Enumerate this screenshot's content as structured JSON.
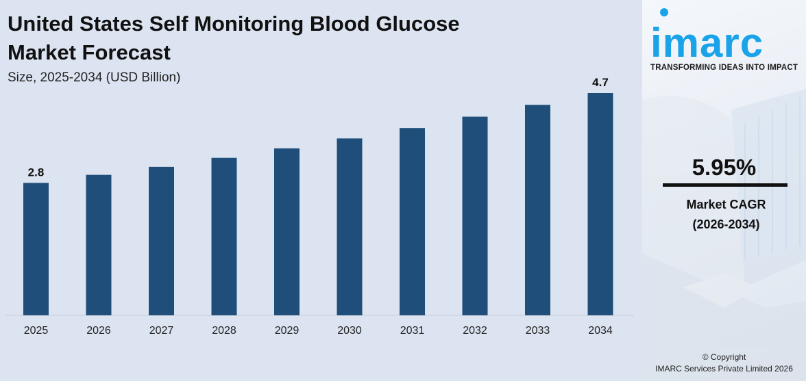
{
  "header": {
    "title": "United States Self Monitoring Blood Glucose Market Forecast",
    "subtitle": "Size, 2025-2034 (USD Billion)"
  },
  "chart_data": {
    "type": "bar",
    "categories": [
      "2025",
      "2026",
      "2027",
      "2028",
      "2029",
      "2030",
      "2031",
      "2032",
      "2033",
      "2034"
    ],
    "values": [
      2.8,
      2.97,
      3.14,
      3.33,
      3.53,
      3.74,
      3.96,
      4.2,
      4.45,
      4.7
    ],
    "data_labels": {
      "2025": "2.8",
      "2034": "4.7"
    },
    "bar_color": "#1f4e7a",
    "ylim": [
      0,
      5
    ],
    "grid": false,
    "legend": "none"
  },
  "side": {
    "logo": "imarc",
    "tagline": "TRANSFORMING IDEAS INTO IMPACT",
    "cagr_value": "5.95%",
    "cagr_label_line1": "Market CAGR",
    "cagr_label_line2": "(2026-2034)",
    "copyright_line1": "© Copyright",
    "copyright_line2": "IMARC Services Private Limited 2026",
    "accent_color": "#1aa3e8"
  }
}
